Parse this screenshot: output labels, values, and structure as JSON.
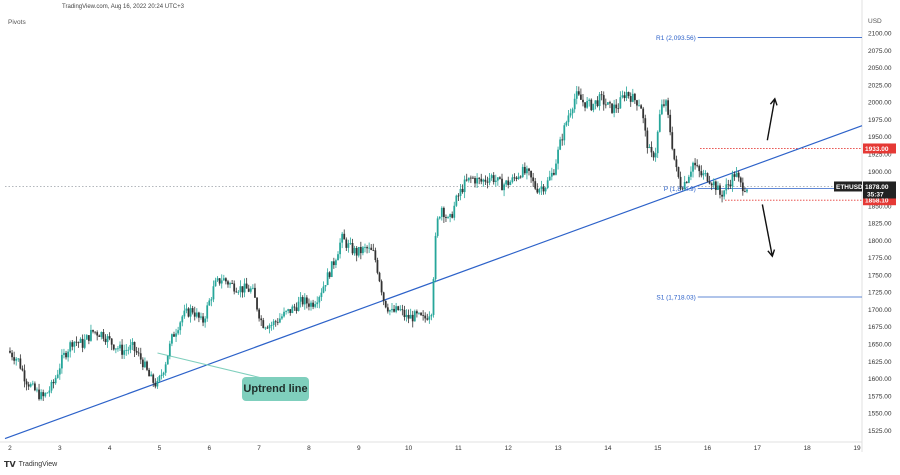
{
  "header": {
    "watermark": "TradingView.com, Aug 16, 2022 20:24 UTC+3",
    "indicator": "Pivots",
    "currency": "USD"
  },
  "footer": {
    "brand": "TradingView",
    "logo_icon": "tradingview-logo-icon"
  },
  "annotation": {
    "label": "Uptrend line"
  },
  "levels": {
    "r1": "R1 (2,093.56)",
    "pivot": "P (1,874.9)",
    "s1": "S1 (1,718.03)"
  },
  "price_tags": {
    "upper": "1933.00",
    "last": "1878.00",
    "symbol": "ETHUSD",
    "timer": "35:37",
    "lower": "1858.10"
  },
  "colors": {
    "up": "#26a69a",
    "down": "#333333",
    "trendline": "#2d62c9",
    "tag_red": "#e53935",
    "badge": "#7fcfbd"
  },
  "chart_data": {
    "type": "candlestick",
    "symbol": "ETHUSD",
    "x_ticks": [
      "2",
      "3",
      "4",
      "5",
      "6",
      "7",
      "8",
      "9",
      "10",
      "11",
      "12",
      "13",
      "14",
      "15",
      "16",
      "17",
      "18",
      "19"
    ],
    "y_ticks": [
      1525,
      1550,
      1575,
      1600,
      1625,
      1650,
      1675,
      1700,
      1725,
      1750,
      1775,
      1800,
      1825,
      1850,
      1875,
      1900,
      1925,
      1950,
      1975,
      2000,
      2025,
      2050,
      2075,
      2100
    ],
    "ylim": [
      1511,
      2119
    ],
    "xlim": [
      1.9,
      19.1
    ],
    "price_path": [
      [
        2.0,
        1640
      ],
      [
        2.2,
        1628
      ],
      [
        2.35,
        1600
      ],
      [
        2.5,
        1585
      ],
      [
        2.7,
        1572
      ],
      [
        2.9,
        1590
      ],
      [
        3.1,
        1630
      ],
      [
        3.3,
        1655
      ],
      [
        3.5,
        1650
      ],
      [
        3.7,
        1668
      ],
      [
        3.9,
        1665
      ],
      [
        4.1,
        1650
      ],
      [
        4.3,
        1640
      ],
      [
        4.5,
        1645
      ],
      [
        4.7,
        1625
      ],
      [
        4.85,
        1600
      ],
      [
        5.0,
        1590
      ],
      [
        5.15,
        1620
      ],
      [
        5.3,
        1660
      ],
      [
        5.5,
        1690
      ],
      [
        5.7,
        1700
      ],
      [
        5.9,
        1680
      ],
      [
        6.0,
        1702
      ],
      [
        6.15,
        1735
      ],
      [
        6.3,
        1745
      ],
      [
        6.5,
        1735
      ],
      [
        6.7,
        1730
      ],
      [
        6.9,
        1728
      ],
      [
        7.1,
        1680
      ],
      [
        7.3,
        1678
      ],
      [
        7.5,
        1690
      ],
      [
        7.7,
        1700
      ],
      [
        7.9,
        1712
      ],
      [
        8.1,
        1708
      ],
      [
        8.25,
        1722
      ],
      [
        8.4,
        1745
      ],
      [
        8.55,
        1770
      ],
      [
        8.7,
        1803
      ],
      [
        8.85,
        1790
      ],
      [
        9.0,
        1782
      ],
      [
        9.2,
        1788
      ],
      [
        9.35,
        1780
      ],
      [
        9.45,
        1748
      ],
      [
        9.55,
        1712
      ],
      [
        9.7,
        1695
      ],
      [
        9.85,
        1700
      ],
      [
        10.0,
        1688
      ],
      [
        10.2,
        1690
      ],
      [
        10.35,
        1685
      ],
      [
        10.5,
        1700
      ],
      [
        10.6,
        1820
      ],
      [
        10.7,
        1850
      ],
      [
        10.85,
        1825
      ],
      [
        11.0,
        1858
      ],
      [
        11.15,
        1880
      ],
      [
        11.3,
        1890
      ],
      [
        11.5,
        1885
      ],
      [
        11.7,
        1893
      ],
      [
        11.9,
        1880
      ],
      [
        12.1,
        1885
      ],
      [
        12.3,
        1900
      ],
      [
        12.45,
        1895
      ],
      [
        12.6,
        1875
      ],
      [
        12.8,
        1880
      ],
      [
        12.95,
        1900
      ],
      [
        13.1,
        1945
      ],
      [
        13.25,
        1982
      ],
      [
        13.4,
        2010
      ],
      [
        13.55,
        2000
      ],
      [
        13.7,
        1995
      ],
      [
        13.9,
        2005
      ],
      [
        14.1,
        1990
      ],
      [
        14.25,
        1995
      ],
      [
        14.4,
        2015
      ],
      [
        14.55,
        2005
      ],
      [
        14.7,
        1998
      ],
      [
        14.8,
        1950
      ],
      [
        14.9,
        1920
      ],
      [
        15.0,
        1930
      ],
      [
        15.1,
        1990
      ],
      [
        15.2,
        2000
      ],
      [
        15.3,
        1955
      ],
      [
        15.4,
        1905
      ],
      [
        15.5,
        1880
      ],
      [
        15.6,
        1885
      ],
      [
        15.75,
        1912
      ],
      [
        15.9,
        1895
      ],
      [
        16.05,
        1892
      ],
      [
        16.2,
        1880
      ],
      [
        16.3,
        1865
      ],
      [
        16.45,
        1880
      ],
      [
        16.6,
        1898
      ],
      [
        16.7,
        1880
      ],
      [
        16.8,
        1878
      ]
    ],
    "trendline": {
      "from": [
        1.9,
        1513
      ],
      "to": [
        19.1,
        1966
      ]
    },
    "pivot_levels": [
      {
        "name": "R1",
        "value": 2093.56,
        "from_x": 14.6
      },
      {
        "name": "P",
        "value": 1874.9,
        "from_x": 14.6
      },
      {
        "name": "S1",
        "value": 1718.03,
        "from_x": 14.6
      }
    ],
    "resistance": {
      "value": 1933.0,
      "from_x": 15.85
    },
    "support": {
      "value": 1858.1,
      "from_x": 16.35
    },
    "last_price": 1878.0,
    "arrows": [
      {
        "direction": "up",
        "from": [
          17.2,
          1945
        ],
        "to": [
          17.35,
          2005
        ]
      },
      {
        "direction": "down",
        "from": [
          17.1,
          1852
        ],
        "to": [
          17.3,
          1777
        ]
      }
    ]
  }
}
